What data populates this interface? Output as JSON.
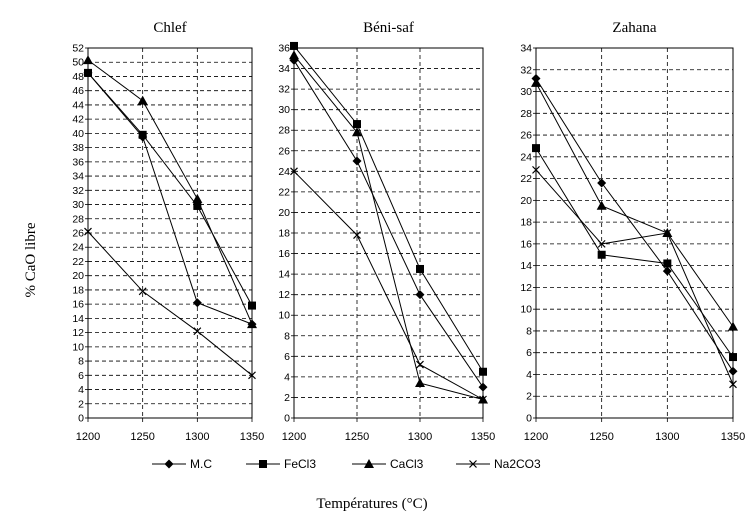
{
  "ylabel": "% CaO  libre",
  "xlabel": "Températures (°C)",
  "legend": [
    {
      "name": "M.C",
      "marker": "diamond"
    },
    {
      "name": "FeCl3",
      "marker": "square"
    },
    {
      "name": "CaCl3",
      "marker": "triangle"
    },
    {
      "name": "Na2CO3",
      "marker": "x"
    }
  ],
  "chart_data": [
    {
      "type": "line",
      "title": "Chlef",
      "x": [
        1200,
        1250,
        1300,
        1350
      ],
      "ylim": [
        0,
        52
      ],
      "ystep": 2,
      "series": [
        {
          "name": "M.C",
          "values": [
            48.5,
            39.5,
            16.2,
            13.2
          ]
        },
        {
          "name": "FeCl3",
          "values": [
            48.5,
            39.8,
            29.8,
            15.8
          ]
        },
        {
          "name": "CaCl3",
          "values": [
            50.3,
            44.6,
            30.8,
            13.2
          ]
        },
        {
          "name": "Na2CO3",
          "values": [
            26.2,
            17.8,
            12.2,
            6.0
          ]
        }
      ]
    },
    {
      "type": "line",
      "title": "Béni-saf",
      "x": [
        1200,
        1250,
        1300,
        1350
      ],
      "ylim": [
        0,
        36
      ],
      "ystep": 2,
      "series": [
        {
          "name": "M.C",
          "values": [
            34.8,
            25.0,
            12.0,
            3.0
          ]
        },
        {
          "name": "FeCl3",
          "values": [
            36.2,
            28.6,
            14.5,
            4.5
          ]
        },
        {
          "name": "CaCl3",
          "values": [
            35.3,
            27.8,
            3.4,
            1.8
          ]
        },
        {
          "name": "Na2CO3",
          "values": [
            24.0,
            17.8,
            5.2,
            1.8
          ]
        }
      ]
    },
    {
      "type": "line",
      "title": "Zahana",
      "x": [
        1200,
        1250,
        1300,
        1350
      ],
      "ylim": [
        0,
        34
      ],
      "ystep": 2,
      "series": [
        {
          "name": "M.C",
          "values": [
            31.2,
            21.6,
            13.5,
            4.3
          ]
        },
        {
          "name": "FeCl3",
          "values": [
            24.8,
            15.0,
            14.2,
            5.6
          ]
        },
        {
          "name": "CaCl3",
          "values": [
            30.8,
            19.5,
            17.0,
            8.4
          ]
        },
        {
          "name": "Na2CO3",
          "values": [
            22.8,
            16.0,
            17.0,
            3.1
          ]
        }
      ]
    }
  ]
}
